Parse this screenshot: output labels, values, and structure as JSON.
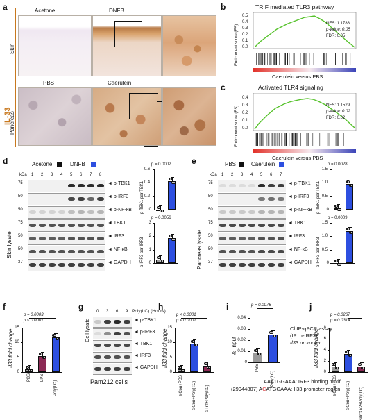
{
  "panels": {
    "a": {
      "letter": "a",
      "row_group_label": "IL-33",
      "rows": [
        "Skin",
        "Pancreas"
      ],
      "skin_conditions": [
        "Acetone",
        "DNFB"
      ],
      "pancreas_conditions": [
        "PBS",
        "Caerulein"
      ]
    },
    "b": {
      "letter": "b",
      "title": "TRIF mediated TLR3 pathway",
      "ylabel": "Enrichment score (ES)",
      "xlabel": "Caerulein versus PBS",
      "ticks": [
        "0.5",
        "0.4",
        "0.3",
        "0.2",
        "0.1",
        "0.0"
      ],
      "stats": [
        "NES: 1.1788",
        "p-value: 0.05",
        "FDR: 0.05"
      ]
    },
    "c": {
      "letter": "c",
      "title": "Activated TLR4 signaling",
      "ylabel": "Enrichment score (ES)",
      "xlabel": "Caerulein versus PBS",
      "ticks": [
        "0.4",
        "0.3",
        "0.2",
        "0.1",
        "0.0"
      ],
      "stats": [
        "NES: 1.1529",
        "p-value: 0.02",
        "FDR: 0.02"
      ]
    },
    "d": {
      "letter": "d",
      "groups": [
        "Acetone",
        "DNFB"
      ],
      "lanes": [
        "1",
        "2",
        "3",
        "4",
        "5",
        "6",
        "7",
        "8"
      ],
      "kda_label": "kDa",
      "side_label": "Skin lysate",
      "markers": [
        "75",
        "50",
        "50",
        "75",
        "50",
        "50",
        "37"
      ],
      "proteins": [
        "p-TBK1",
        "p-IRF3",
        "p-NF-κB",
        "TBK1",
        "IRF3",
        "NF-κB",
        "GAPDH"
      ],
      "quant": [
        {
          "ylabel": "p-TBK1 per TBK1",
          "p": "p = 0.0002",
          "ticks": [
            "0.6",
            "0.4",
            "0.2",
            "0"
          ]
        },
        {
          "ylabel": "p-IRF3 per IRF3",
          "p": "p = 0.0056",
          "ticks": [
            "3",
            "2",
            "1",
            "0"
          ]
        }
      ]
    },
    "e": {
      "letter": "e",
      "groups": [
        "PBS",
        "Caerulein"
      ],
      "lanes": [
        "1",
        "2",
        "3",
        "4",
        "5",
        "6",
        "7"
      ],
      "kda_label": "kDa",
      "side_label": "Pancreas lysate",
      "markers": [
        "75",
        "50",
        "50",
        "75",
        "50",
        "50",
        "37"
      ],
      "proteins": [
        "p-TBK1",
        "p-IRF3",
        "p-NF-κB",
        "TBK1",
        "IRF3",
        "NF-κB",
        "GAPDH"
      ],
      "quant": [
        {
          "ylabel": "p-TBK1 per TBK1",
          "p": "p = 0.0028",
          "ticks": [
            "1.5",
            "1.0",
            "0.5",
            "0"
          ]
        },
        {
          "ylabel": "p-IRF3 per IRF3",
          "p": "p = 0.0009",
          "ticks": [
            "1.5",
            "1.0",
            "0.5",
            "0"
          ]
        }
      ]
    },
    "f": {
      "letter": "f",
      "ylabel": "Il33 fold change",
      "ticks": [
        "15",
        "10",
        "5",
        "0"
      ],
      "p_values": [
        "p = 0.0003",
        "p < 0.0001"
      ],
      "categories": [
        "PBS",
        "LPS",
        "Poly(I:C)"
      ]
    },
    "g": {
      "letter": "g",
      "timepoints": [
        "0",
        "3",
        "6",
        "9"
      ],
      "time_label": "Poly(I:C) (Hours)",
      "side_label": "Cell lysate",
      "proteins": [
        "p-TBK1",
        "p-IRF3",
        "TBK1",
        "IRF3",
        "GAPDH"
      ],
      "caption": "Pam212 cells"
    },
    "h": {
      "letter": "h",
      "ylabel": "Il33 fold change",
      "ticks": [
        "15",
        "10",
        "5",
        "0"
      ],
      "p_values": [
        "p < 0.0001",
        "p < 0.0001"
      ],
      "categories": [
        "siCon+PBS",
        "siCon+Poly(I:C)",
        "siTrif+Poly(I:C)"
      ]
    },
    "i": {
      "letter": "i",
      "ylabel": "% Input",
      "ticks": [
        "0.04",
        "0.03",
        "0.02",
        "0.01",
        "0"
      ],
      "p_value": "p = 0.0078",
      "categories": [
        "PBS",
        "Poly(I:C)"
      ],
      "assay_lines": [
        "ChIP-qPCR assay",
        "(IP: α-IRF3)",
        "Il33 promoter"
      ],
      "motif_line1": "AAATGGAAA: IRF3 binding motif",
      "motif_line2_code": "(29944807)",
      "motif_line2_a": "A",
      "motif_line2_b": "C",
      "motif_line2_rest": "ATGGAAA: Il33 promoter region"
    },
    "j": {
      "letter": "j",
      "ylabel": "Il33 fold change",
      "ticks": [
        "8",
        "6",
        "4",
        "2",
        "0"
      ],
      "p_values": [
        "p = 0.0267",
        "p = 0.0314"
      ],
      "categories": [
        "siCon+PBS",
        "siCon+Poly(I:C)",
        "siIrf3 #2+Poly(I:C)"
      ]
    }
  },
  "colors": {
    "blue": "#2d4fe0",
    "maroon": "#8c2a55",
    "gray": "#9a9a9a",
    "black": "#111111",
    "green": "#56c22b",
    "il33_orange": "#c8781e"
  },
  "chart_data": [
    {
      "type": "bar",
      "panel": "d-top",
      "categories": [
        "Acetone",
        "DNFB"
      ],
      "values": [
        0.0,
        0.42
      ],
      "ylim": [
        0,
        0.6
      ]
    },
    {
      "type": "bar",
      "panel": "d-bottom",
      "categories": [
        "Acetone",
        "DNFB"
      ],
      "values": [
        0.25,
        1.85
      ],
      "ylim": [
        0,
        3
      ]
    },
    {
      "type": "bar",
      "panel": "e-top",
      "categories": [
        "PBS",
        "Caerulein"
      ],
      "values": [
        0.05,
        0.95
      ],
      "ylim": [
        0,
        1.5
      ]
    },
    {
      "type": "bar",
      "panel": "e-bottom",
      "categories": [
        "PBS",
        "Caerulein"
      ],
      "values": [
        0.0,
        1.2
      ],
      "ylim": [
        0,
        1.5
      ]
    },
    {
      "type": "bar",
      "panel": "f",
      "categories": [
        "PBS",
        "LPS",
        "Poly(I:C)"
      ],
      "values": [
        1.0,
        5.3,
        11.8
      ],
      "ylim": [
        0,
        15
      ]
    },
    {
      "type": "bar",
      "panel": "h",
      "categories": [
        "siCon+PBS",
        "siCon+Poly(I:C)",
        "siTrif+Poly(I:C)"
      ],
      "values": [
        1.0,
        9.5,
        2.2
      ],
      "ylim": [
        0,
        15
      ]
    },
    {
      "type": "bar",
      "panel": "i",
      "categories": [
        "PBS",
        "Poly(I:C)"
      ],
      "values": [
        0.009,
        0.025
      ],
      "ylim": [
        0,
        0.04
      ]
    },
    {
      "type": "bar",
      "panel": "j",
      "categories": [
        "siCon+PBS",
        "siCon+Poly(I:C)",
        "siIrf3 #2+Poly(I:C)"
      ],
      "values": [
        1.0,
        3.2,
        1.0
      ],
      "ylim": [
        0,
        8
      ]
    }
  ]
}
